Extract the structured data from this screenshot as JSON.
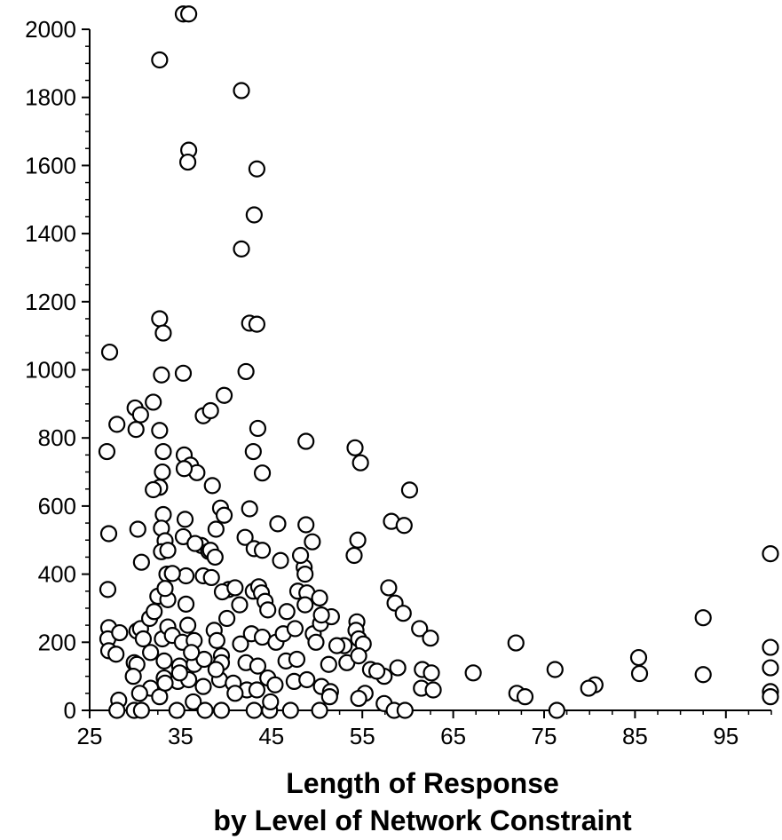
{
  "chart_data": {
    "type": "scatter",
    "title": "",
    "xlabel_line1": "Length of Response",
    "xlabel_line2": "by Level of Network Constraint",
    "ylabel": "",
    "xlim": [
      25,
      100
    ],
    "ylim": [
      0,
      2000
    ],
    "x_ticks": [
      25,
      35,
      45,
      55,
      65,
      75,
      85,
      95
    ],
    "y_ticks": [
      0,
      200,
      400,
      600,
      800,
      1000,
      1200,
      1400,
      1600,
      1800,
      2000
    ],
    "grid": false,
    "series": [
      {
        "points": [
          [
            35.3,
            2045
          ],
          [
            35.9,
            2045
          ],
          [
            32.7,
            1910
          ],
          [
            41.7,
            1820
          ],
          [
            35.9,
            1645
          ],
          [
            35.8,
            1610
          ],
          [
            43.4,
            1590
          ],
          [
            43.1,
            1455
          ],
          [
            41.7,
            1355
          ],
          [
            32.7,
            1150
          ],
          [
            33.1,
            1108
          ],
          [
            42.6,
            1137
          ],
          [
            43.4,
            1134
          ],
          [
            27.2,
            1052
          ],
          [
            42.2,
            995
          ],
          [
            32.9,
            985
          ],
          [
            35.3,
            990
          ],
          [
            39.8,
            925
          ],
          [
            32.0,
            905
          ],
          [
            30.0,
            888
          ],
          [
            30.6,
            868
          ],
          [
            37.5,
            865
          ],
          [
            28.0,
            840
          ],
          [
            38.3,
            880
          ],
          [
            30.1,
            825
          ],
          [
            32.7,
            822
          ],
          [
            43.5,
            828
          ],
          [
            48.8,
            790
          ],
          [
            54.2,
            771
          ],
          [
            26.9,
            760
          ],
          [
            33.1,
            760
          ],
          [
            35.4,
            750
          ],
          [
            36.1,
            720
          ],
          [
            36.8,
            698
          ],
          [
            33.0,
            700
          ],
          [
            35.4,
            710
          ],
          [
            43.0,
            760
          ],
          [
            44.0,
            697
          ],
          [
            32.7,
            655
          ],
          [
            32.0,
            648
          ],
          [
            38.5,
            660
          ],
          [
            54.8,
            727
          ],
          [
            60.2,
            647
          ],
          [
            42.6,
            592
          ],
          [
            39.4,
            594
          ],
          [
            39.8,
            573
          ],
          [
            33.1,
            575
          ],
          [
            35.5,
            561
          ],
          [
            45.7,
            548
          ],
          [
            48.8,
            545
          ],
          [
            58.2,
            555
          ],
          [
            59.6,
            543
          ],
          [
            27.1,
            519
          ],
          [
            30.3,
            532
          ],
          [
            32.9,
            535
          ],
          [
            38.9,
            532
          ],
          [
            49.5,
            495
          ],
          [
            54.5,
            500
          ],
          [
            54.1,
            455
          ],
          [
            33.3,
            498
          ],
          [
            35.3,
            510
          ],
          [
            42.1,
            508
          ],
          [
            37.3,
            484
          ],
          [
            36.6,
            490
          ],
          [
            32.9,
            466
          ],
          [
            33.6,
            470
          ],
          [
            38.1,
            467
          ],
          [
            38.3,
            470
          ],
          [
            43.1,
            475
          ],
          [
            44.0,
            470
          ],
          [
            46.0,
            440
          ],
          [
            30.7,
            435
          ],
          [
            33.5,
            400
          ],
          [
            35.6,
            395
          ],
          [
            34.1,
            402
          ],
          [
            37.5,
            395
          ],
          [
            38.4,
            390
          ],
          [
            38.8,
            450
          ],
          [
            43.0,
            350
          ],
          [
            40.3,
            355
          ],
          [
            39.6,
            348
          ],
          [
            48.6,
            420
          ],
          [
            48.2,
            455
          ],
          [
            48.7,
            400
          ],
          [
            27.0,
            355
          ],
          [
            32.5,
            335
          ],
          [
            33.6,
            325
          ],
          [
            35.6,
            312
          ],
          [
            33.3,
            358
          ],
          [
            41.0,
            360
          ],
          [
            43.6,
            363
          ],
          [
            43.9,
            345
          ],
          [
            44.3,
            320
          ],
          [
            47.9,
            350
          ],
          [
            48.9,
            345
          ],
          [
            50.3,
            330
          ],
          [
            57.9,
            360
          ],
          [
            58.6,
            315
          ],
          [
            59.5,
            285
          ],
          [
            61.3,
            240
          ],
          [
            62.5,
            212
          ],
          [
            99.9,
            460
          ],
          [
            92.5,
            272
          ],
          [
            99.9,
            185
          ],
          [
            99.9,
            125
          ],
          [
            99.9,
            55
          ],
          [
            99.9,
            40
          ],
          [
            27.1,
            243
          ],
          [
            27.0,
            210
          ],
          [
            27.1,
            175
          ],
          [
            27.9,
            165
          ],
          [
            28.3,
            228
          ],
          [
            30.2,
            233
          ],
          [
            30.6,
            240
          ],
          [
            30.9,
            210
          ],
          [
            31.6,
            270
          ],
          [
            32.1,
            290
          ],
          [
            33.0,
            210
          ],
          [
            33.6,
            245
          ],
          [
            34.1,
            220
          ],
          [
            35.2,
            200
          ],
          [
            35.8,
            250
          ],
          [
            36.5,
            205
          ],
          [
            38.7,
            235
          ],
          [
            39.0,
            205
          ],
          [
            39.5,
            160
          ],
          [
            41.6,
            195
          ],
          [
            42.8,
            225
          ],
          [
            44.0,
            215
          ],
          [
            45.5,
            200
          ],
          [
            46.3,
            225
          ],
          [
            47.6,
            240
          ],
          [
            48.7,
            310
          ],
          [
            49.6,
            225
          ],
          [
            50.4,
            255
          ],
          [
            51.6,
            275
          ],
          [
            53.0,
            190
          ],
          [
            54.4,
            260
          ],
          [
            54.3,
            235
          ],
          [
            54.6,
            210
          ],
          [
            55.1,
            195
          ],
          [
            49.9,
            200
          ],
          [
            50.5,
            280
          ],
          [
            29.9,
            140
          ],
          [
            30.2,
            135
          ],
          [
            33.2,
            145
          ],
          [
            34.9,
            130
          ],
          [
            36.5,
            135
          ],
          [
            37.6,
            150
          ],
          [
            39.5,
            140
          ],
          [
            42.2,
            140
          ],
          [
            43.5,
            130
          ],
          [
            46.6,
            145
          ],
          [
            47.8,
            150
          ],
          [
            51.3,
            135
          ],
          [
            53.3,
            140
          ],
          [
            55.9,
            120
          ],
          [
            58.9,
            125
          ],
          [
            61.6,
            120
          ],
          [
            62.6,
            110
          ],
          [
            67.2,
            110
          ],
          [
            71.9,
            198
          ],
          [
            85.4,
            155
          ],
          [
            85.5,
            108
          ],
          [
            92.5,
            105
          ],
          [
            76.2,
            120
          ],
          [
            80.6,
            75
          ],
          [
            79.9,
            65
          ],
          [
            29.8,
            100
          ],
          [
            31.7,
            65
          ],
          [
            33.2,
            95
          ],
          [
            34.7,
            85
          ],
          [
            35.9,
            90
          ],
          [
            37.5,
            70
          ],
          [
            39.3,
            90
          ],
          [
            40.8,
            80
          ],
          [
            42.3,
            60
          ],
          [
            43.4,
            60
          ],
          [
            44.6,
            95
          ],
          [
            45.4,
            75
          ],
          [
            47.5,
            85
          ],
          [
            48.9,
            90
          ],
          [
            50.5,
            70
          ],
          [
            51.5,
            55
          ],
          [
            55.3,
            50
          ],
          [
            57.4,
            100
          ],
          [
            61.5,
            65
          ],
          [
            62.8,
            60
          ],
          [
            72.0,
            50
          ],
          [
            72.9,
            40
          ],
          [
            28.2,
            30
          ],
          [
            30.5,
            50
          ],
          [
            32.7,
            40
          ],
          [
            33.3,
            80
          ],
          [
            34.6,
            0
          ],
          [
            36.4,
            25
          ],
          [
            37.7,
            0
          ],
          [
            39.5,
            0
          ],
          [
            41.0,
            50
          ],
          [
            43.1,
            0
          ],
          [
            44.8,
            0
          ],
          [
            44.9,
            25
          ],
          [
            47.1,
            0
          ],
          [
            50.3,
            0
          ],
          [
            51.4,
            40
          ],
          [
            54.6,
            35
          ],
          [
            57.4,
            20
          ],
          [
            58.5,
            0
          ],
          [
            59.7,
            0
          ],
          [
            76.4,
            0
          ],
          [
            28.0,
            0
          ],
          [
            29.9,
            0
          ],
          [
            30.7,
            0
          ],
          [
            31.7,
            170
          ],
          [
            34.9,
            110
          ],
          [
            36.2,
            170
          ],
          [
            38.9,
            120
          ],
          [
            40.1,
            270
          ],
          [
            41.5,
            310
          ],
          [
            44.6,
            295
          ],
          [
            46.7,
            290
          ],
          [
            52.2,
            190
          ],
          [
            54.6,
            160
          ],
          [
            56.6,
            115
          ]
        ]
      }
    ]
  }
}
